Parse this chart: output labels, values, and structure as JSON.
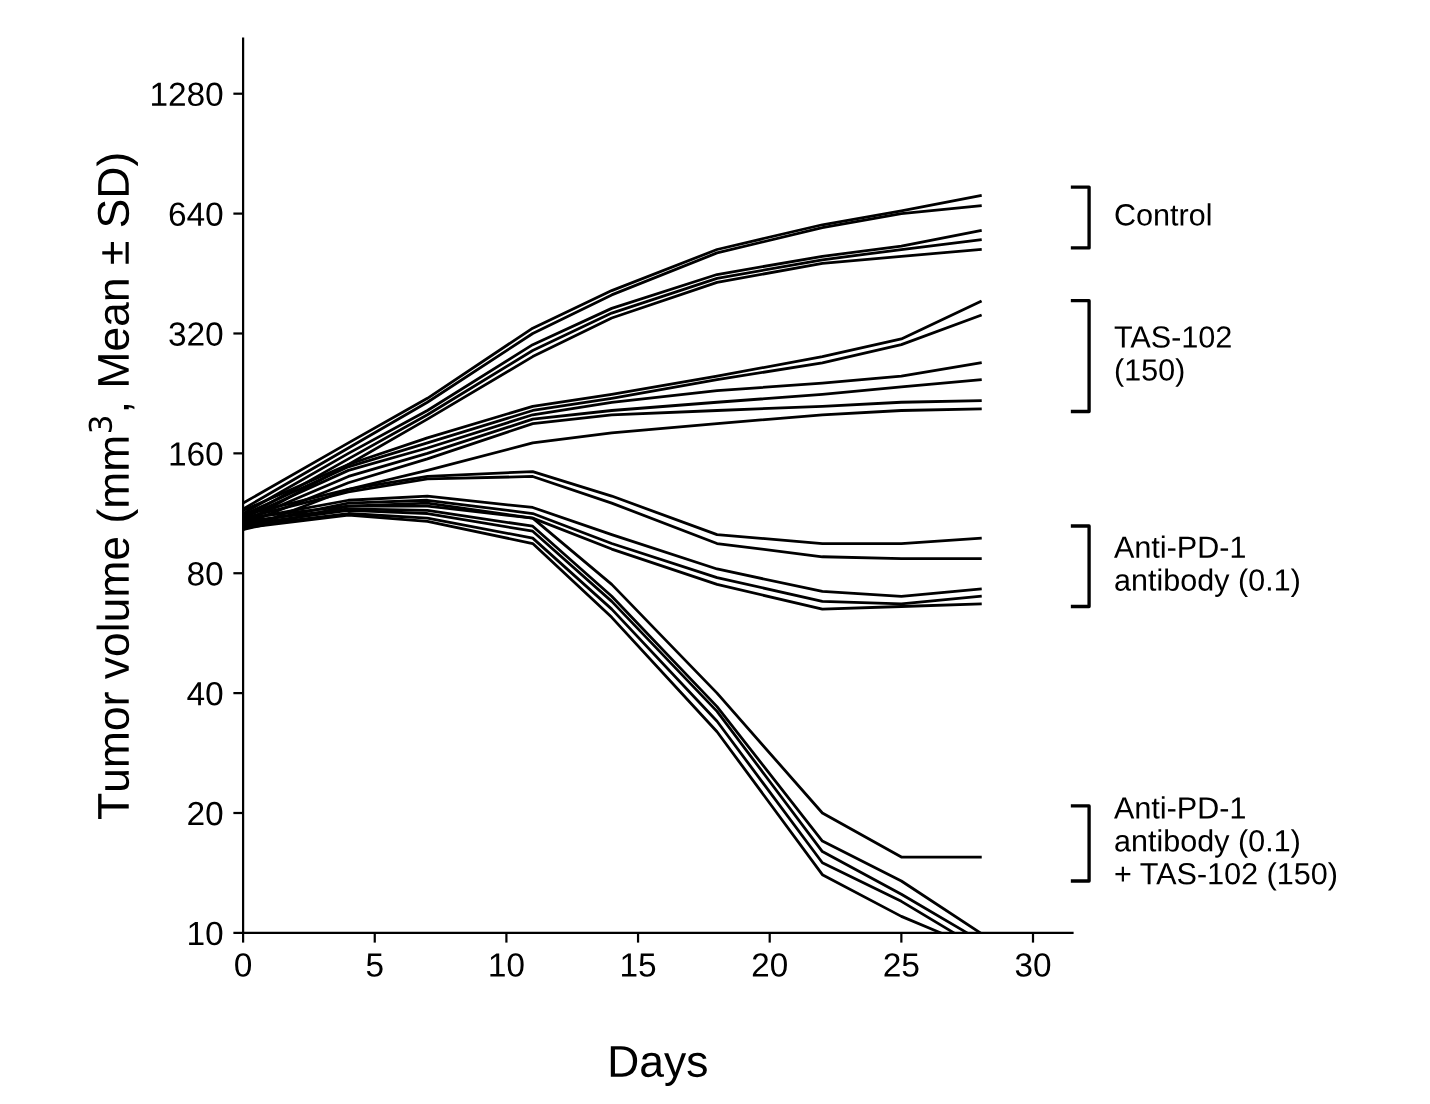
{
  "chart_data": {
    "type": "line",
    "xlabel": "Days",
    "ylabel": "Tumor volume (mm$^{3}$, Mean ± SD)",
    "log": "y",
    "grid": false,
    "legend": false,
    "marker": "none",
    "line_style": "solid",
    "xlim": [
      0,
      31.5
    ],
    "xticks": [
      0,
      5,
      10,
      15,
      20,
      25,
      30
    ],
    "ylim": [
      10,
      1760
    ],
    "yticks": [
      10,
      20,
      40,
      80,
      160,
      320,
      640,
      1280
    ],
    "x": [
      0,
      4,
      7,
      11,
      14,
      18,
      22,
      25,
      28
    ],
    "series": [
      {
        "color": "#000000",
        "values": [
          120,
          170,
          220,
          330,
          410,
          520,
          600,
          650,
          710
        ]
      },
      {
        "color": "#000000",
        "values": [
          116,
          165,
          215,
          320,
          400,
          510,
          590,
          640,
          670
        ]
      },
      {
        "color": "#000000",
        "values": [
          113,
          160,
          205,
          300,
          370,
          450,
          500,
          530,
          580
        ]
      },
      {
        "color": "#000000",
        "values": [
          110,
          155,
          200,
          290,
          360,
          440,
          490,
          520,
          550
        ]
      },
      {
        "color": "#000000",
        "values": [
          107,
          150,
          195,
          280,
          350,
          430,
          480,
          500,
          520
        ]
      },
      {
        "color": "#000000",
        "values": [
          115,
          150,
          175,
          210,
          225,
          250,
          280,
          310,
          385
        ]
      },
      {
        "color": "#000000",
        "values": [
          112,
          148,
          170,
          205,
          220,
          245,
          270,
          300,
          355
        ]
      },
      {
        "color": "#000000",
        "values": [
          110,
          145,
          165,
          200,
          215,
          230,
          240,
          250,
          270
        ]
      },
      {
        "color": "#000000",
        "values": [
          108,
          140,
          160,
          195,
          205,
          215,
          225,
          235,
          245
        ]
      },
      {
        "color": "#000000",
        "values": [
          106,
          135,
          155,
          190,
          200,
          205,
          210,
          215,
          217
        ]
      },
      {
        "color": "#000000",
        "values": [
          103,
          130,
          145,
          170,
          180,
          190,
          200,
          205,
          207
        ]
      },
      {
        "color": "#000000",
        "values": [
          112,
          130,
          140,
          144,
          125,
          100,
          95,
          95,
          98
        ]
      },
      {
        "color": "#000000",
        "values": [
          110,
          128,
          138,
          140,
          120,
          95,
          88,
          87,
          87
        ]
      },
      {
        "color": "#000000",
        "values": [
          109,
          122,
          125,
          117,
          100,
          82,
          72,
          70,
          73
        ]
      },
      {
        "color": "#000000",
        "values": [
          106,
          120,
          122,
          113,
          95,
          78,
          68,
          67,
          70
        ]
      },
      {
        "color": "#000000",
        "values": [
          103,
          118,
          120,
          110,
          92,
          75,
          65,
          66,
          67
        ]
      },
      {
        "color": "#000000",
        "values": [
          110,
          118,
          118,
          110,
          75,
          40,
          20,
          15.5,
          15.5
        ]
      },
      {
        "color": "#000000",
        "x": [
          0,
          4,
          7,
          11,
          14,
          18,
          22,
          25,
          28
        ],
        "values": [
          108,
          116,
          115,
          105,
          70,
          37,
          17,
          13.5,
          10
        ]
      },
      {
        "color": "#000000",
        "x": [
          0,
          4,
          7,
          11,
          14,
          18,
          22,
          25,
          27.5
        ],
        "values": [
          106,
          115,
          113,
          102,
          68,
          36,
          16,
          12.5,
          10
        ]
      },
      {
        "color": "#000000",
        "x": [
          0,
          4,
          7,
          11,
          14,
          18,
          22,
          25,
          27
        ],
        "values": [
          105,
          113,
          110,
          98,
          65,
          34,
          15,
          12,
          10
        ]
      },
      {
        "color": "#000000",
        "x": [
          0,
          4,
          7,
          11,
          14,
          18,
          22,
          25,
          26.5
        ],
        "values": [
          104,
          112,
          108,
          95,
          62,
          32,
          14,
          11,
          10
        ]
      }
    ],
    "annotations": [
      "Control",
      "TAS-102\n(150)",
      "Anti-PD-1\nantibody (0.1)",
      "Anti-PD-1\nantibody (0.1)\n+ TAS-102 (150)"
    ]
  }
}
